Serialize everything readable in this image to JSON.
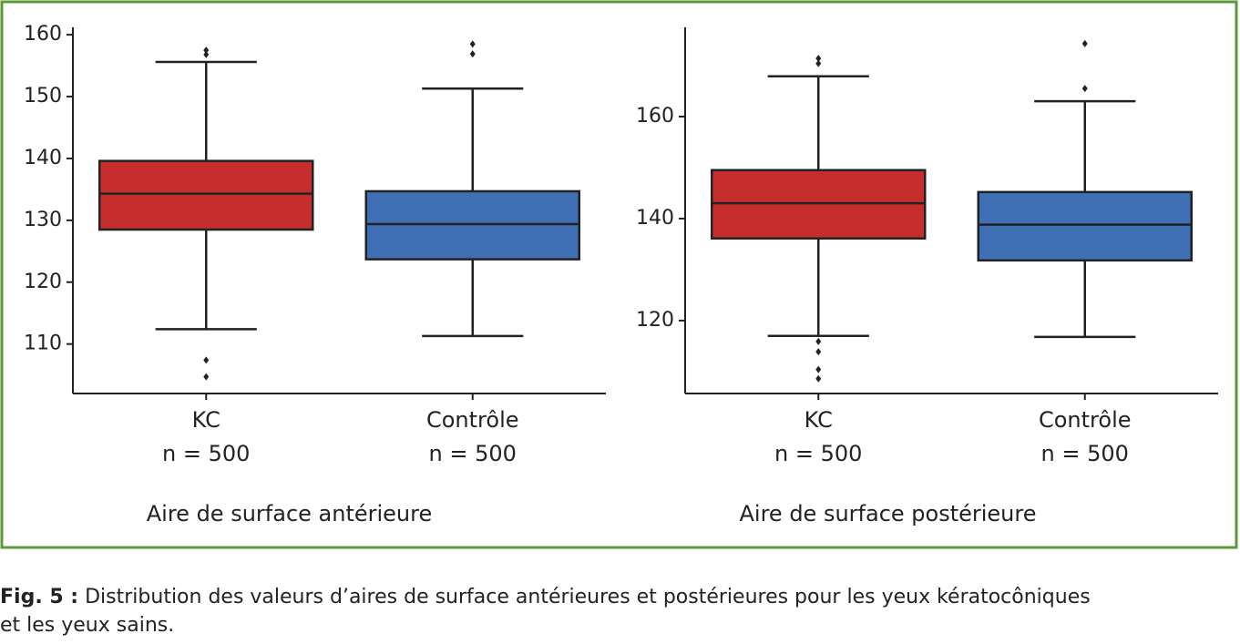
{
  "chart_data": [
    {
      "type": "box",
      "xlabel": "Aire de surface antérieure",
      "categories": [
        "KC",
        "Contrôle"
      ],
      "category_counts": [
        "n = 500",
        "n = 500"
      ],
      "ylim": [
        102,
        161.2
      ],
      "yticks": [
        110,
        120,
        130,
        140,
        150,
        160
      ],
      "boxes": [
        {
          "color": "#c62d2d",
          "whisker_low": 112.4,
          "q1": 128.5,
          "median": 134.3,
          "q3": 139.6,
          "whisker_high": 155.6,
          "outliers": [
            157.5,
            156.8,
            107.4,
            104.7
          ]
        },
        {
          "color": "#3f6fb5",
          "whisker_low": 111.3,
          "q1": 123.7,
          "median": 129.4,
          "q3": 134.7,
          "whisker_high": 151.3,
          "outliers": [
            158.5,
            156.9
          ]
        }
      ]
    },
    {
      "type": "box",
      "xlabel": "Aire de surface postérieure",
      "categories": [
        "KC",
        "Contrôle"
      ],
      "category_counts": [
        "n = 500",
        "n = 500"
      ],
      "ylim": [
        105.7,
        177.5
      ],
      "yticks": [
        120,
        140,
        160
      ],
      "boxes": [
        {
          "color": "#c62d2d",
          "whisker_low": 117.0,
          "q1": 136.1,
          "median": 143.0,
          "q3": 149.5,
          "whisker_high": 167.9,
          "outliers": [
            171.4,
            170.4,
            115.9,
            113.9,
            110.4,
            108.6
          ]
        },
        {
          "color": "#3f6fb5",
          "whisker_low": 116.8,
          "q1": 131.8,
          "median": 138.8,
          "q3": 145.2,
          "whisker_high": 163.0,
          "outliers": [
            174.3,
            165.5
          ]
        }
      ]
    }
  ],
  "caption": {
    "label": "Fig. 5 :",
    "text": "Distribution des valeurs d’aires de surface antérieures et postérieures pour les yeux kératocôniques",
    "text_2": "et les yeux sains."
  }
}
